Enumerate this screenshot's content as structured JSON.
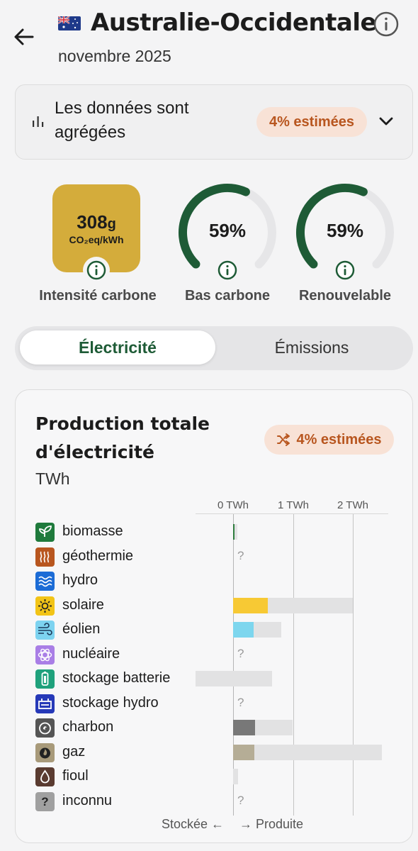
{
  "header": {
    "back_icon": "arrow-left-icon",
    "flag_icon": "australia-flag-icon",
    "zone_name": "Australie-Occidentale",
    "info_icon": "info-icon",
    "date": "novembre 2025"
  },
  "aggregation": {
    "icon": "bar-chart-icon",
    "text": "Les données sont agrégées",
    "estimated_pill": "4% estimées",
    "chevron_icon": "chevron-down-icon"
  },
  "metrics": {
    "carbon_intensity": {
      "value": "308",
      "unit_g": "g",
      "unit": "CO₂eq/kWh",
      "label": "Intensité carbone",
      "color": "#d4ac3b"
    },
    "low_carbon": {
      "value": "59%",
      "fraction": 0.59,
      "label": "Bas carbone"
    },
    "renewable": {
      "value": "59%",
      "fraction": 0.59,
      "label": "Renouvelable"
    },
    "gauge_color": "#1e5b36",
    "gauge_track_color": "#e6e6e8"
  },
  "tabs": {
    "electricity": "Électricité",
    "emissions": "Émissions"
  },
  "production": {
    "title": "Production totale d'électricité",
    "unit": "TWh",
    "estimated_pill": "4% estimées",
    "pill_icon": "shuffle-icon",
    "axis_ticks": [
      "0 TWh",
      "1 TWh",
      "2 TWh"
    ],
    "legend_stored": "Stockée ←",
    "legend_produced": "→ Produite",
    "sources": [
      {
        "name": "biomasse",
        "icon": "leaf-icon",
        "icon_color": "#1f7a3c",
        "value": 0.02,
        "capacity": 0.07,
        "unknown": false,
        "bar_color": "#2e7d3e"
      },
      {
        "name": "géothermie",
        "icon": "heat-waves-icon",
        "icon_color": "#b8561f",
        "value": null,
        "capacity": null,
        "unknown": true
      },
      {
        "name": "hydro",
        "icon": "water-icon",
        "icon_color": "#1c6cd6",
        "value": 0.0,
        "capacity": 0.0,
        "unknown": false
      },
      {
        "name": "solaire",
        "icon": "sun-icon",
        "icon_color": "#f2c417",
        "value": 0.58,
        "capacity": 2.0,
        "unknown": false,
        "bar_color": "#f7c934"
      },
      {
        "name": "éolien",
        "icon": "wind-icon",
        "icon_color": "#7dd3f0",
        "value": 0.34,
        "capacity": 0.8,
        "unknown": false,
        "bar_color": "#7dd6ee"
      },
      {
        "name": "nucléaire",
        "icon": "atom-icon",
        "icon_color": "#a97ee6",
        "value": null,
        "capacity": null,
        "unknown": true
      },
      {
        "name": "stockage batterie",
        "icon": "battery-icon",
        "icon_color": "#1fa17c",
        "value": 0.0,
        "capacity": 0.65,
        "stored_capacity": 0.63,
        "unknown": false
      },
      {
        "name": "stockage hydro",
        "icon": "hydro-storage-icon",
        "icon_color": "#2639b8",
        "value": null,
        "capacity": null,
        "unknown": true
      },
      {
        "name": "charbon",
        "icon": "coal-icon",
        "icon_color": "#555555",
        "value": 0.37,
        "capacity": 0.99,
        "unknown": false,
        "bar_color": "#787878"
      },
      {
        "name": "gaz",
        "icon": "flame-icon",
        "icon_color": "#a89a7a",
        "value": 0.35,
        "capacity": 2.48,
        "unknown": false,
        "bar_color": "#b5ad96"
      },
      {
        "name": "fioul",
        "icon": "oil-drop-icon",
        "icon_color": "#5a3b30",
        "value": 0.0,
        "capacity": 0.08,
        "unknown": false
      },
      {
        "name": "inconnu",
        "icon": "question-icon",
        "icon_color": "#a0a0a0",
        "value": null,
        "capacity": null,
        "unknown": true
      }
    ]
  }
}
